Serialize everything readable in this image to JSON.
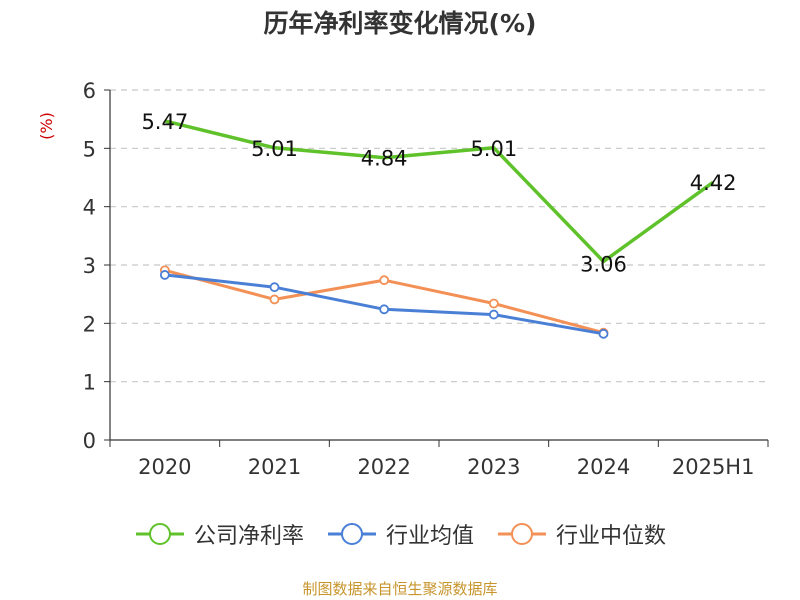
{
  "chart_data": {
    "type": "line",
    "title": "历年净利率变化情况(%)",
    "ylabel": "(%)",
    "ylim": [
      0,
      6
    ],
    "yticks": [
      "0",
      "1",
      "2",
      "3",
      "4",
      "5",
      "6"
    ],
    "categories": [
      "2020",
      "2021",
      "2022",
      "2023",
      "2024",
      "2025H1"
    ],
    "grid": true,
    "legend_placement": "bottom",
    "series": [
      {
        "name": "公司净利率",
        "color": "#5fc22b",
        "values": [
          5.47,
          5.01,
          4.84,
          5.01,
          3.06,
          4.42
        ],
        "data_labels": [
          "5.47",
          "5.01",
          "4.84",
          "5.01",
          "3.06",
          "4.42"
        ]
      },
      {
        "name": "行业均值",
        "color": "#4a7fd6",
        "values": [
          2.83,
          2.62,
          2.24,
          2.15,
          1.82,
          null
        ]
      },
      {
        "name": "行业中位数",
        "color": "#f39055",
        "values": [
          2.91,
          2.41,
          2.74,
          2.34,
          1.84,
          null
        ]
      }
    ]
  },
  "footer": {
    "source": "制图数据来自恒生聚源数据库"
  },
  "colors": {
    "ylabel": "#cc0000",
    "grid": "#c8c8c8",
    "axis": "#333333"
  }
}
